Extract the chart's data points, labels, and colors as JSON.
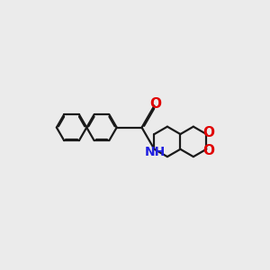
{
  "background_color": "#ebebeb",
  "bond_color": "#1a1a1a",
  "bond_width": 1.6,
  "atom_colors": {
    "O": "#e00000",
    "N": "#2020e0",
    "C": "#1a1a1a"
  },
  "font_size_O": 11,
  "font_size_N": 10,
  "figsize": [
    3.0,
    3.0
  ],
  "dpi": 100
}
